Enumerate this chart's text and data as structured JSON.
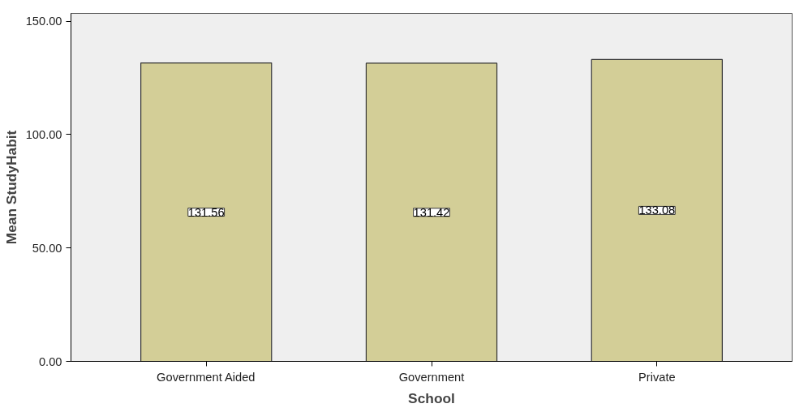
{
  "chart_data": {
    "type": "bar",
    "xlabel": "School",
    "ylabel": "Mean StudyHabit",
    "categories": [
      "Government Aided",
      "Government",
      "Private"
    ],
    "values": [
      131.56,
      131.42,
      133.08
    ],
    "color": "#d3ce97",
    "ylim": [
      0,
      153.4
    ],
    "yticks": [
      {
        "value": 0,
        "label": "0.00"
      },
      {
        "value": 50,
        "label": "50.00"
      },
      {
        "value": 100,
        "label": "100.00"
      },
      {
        "value": 150,
        "label": "150.00"
      }
    ],
    "data_labels": true,
    "grid": false
  }
}
